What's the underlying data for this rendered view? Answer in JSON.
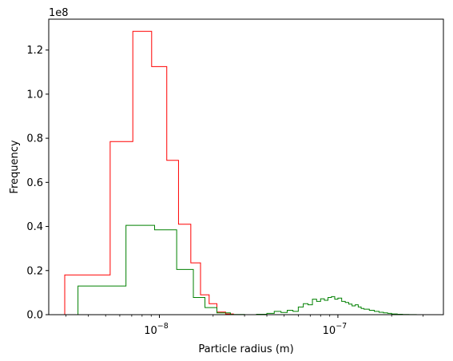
{
  "chart_data": {
    "type": "histogram-step",
    "xlabel": "Particle radius (m)",
    "ylabel": "Frequency",
    "xscale": "log",
    "xlim": [
      2.4e-09,
      3.9e-07
    ],
    "ylim": [
      0,
      134000000.0
    ],
    "y_offset_label": "1e8",
    "y_ticks": [
      0,
      20000000,
      40000000,
      60000000,
      80000000,
      100000000,
      120000000
    ],
    "y_tick_labels": [
      "0.0",
      "0.2",
      "0.4",
      "0.6",
      "0.8",
      "1.0",
      "1.2"
    ],
    "x_major_ticks": [
      1e-08,
      1e-07
    ],
    "x_major_tick_labels": [
      {
        "base": "10",
        "exp": "−8"
      },
      {
        "base": "10",
        "exp": "−7"
      }
    ],
    "x_minor_ticks": [
      3e-09,
      4e-09,
      5e-09,
      6e-09,
      7e-09,
      8e-09,
      9e-09,
      2e-08,
      3e-08,
      4e-08,
      5e-08,
      6e-08,
      7e-08,
      8e-08,
      9e-08,
      2e-07,
      3e-07
    ],
    "series": [
      {
        "color": "#ff0000",
        "edges": [
          2.95e-09,
          5.3e-09,
          7.1e-09,
          9.05e-09,
          1.1e-08,
          1.28e-08,
          1.5e-08,
          1.7e-08,
          1.9e-08,
          2.1e-08,
          2.35e-08,
          2.6e-08
        ],
        "values": [
          18000000,
          78500000,
          128500000,
          112500000,
          70000000,
          41000000,
          23500000,
          9000000,
          5000000,
          1200000,
          300000
        ]
      },
      {
        "color": "#008000",
        "edges": [
          3.5e-09,
          6.5e-09,
          9.4e-09,
          1.25e-08,
          1.55e-08,
          1.8e-08,
          2.1e-08,
          2.5e-08,
          3e-08,
          3.5e-08,
          4e-08,
          4.4e-08,
          4.8e-08,
          5.2e-08,
          5.6e-08,
          6e-08,
          6.4e-08,
          6.8e-08,
          7.2e-08,
          7.6e-08,
          8e-08,
          8.4e-08,
          8.8e-08,
          9.2e-08,
          9.6e-08,
          1e-07,
          1.05e-07,
          1.1e-07,
          1.15e-07,
          1.2e-07,
          1.25e-07,
          1.3e-07,
          1.35e-07,
          1.4e-07,
          1.5e-07,
          1.6e-07,
          1.7e-07,
          1.8e-07,
          1.9e-07,
          2e-07,
          2.15e-07,
          2.3e-07,
          2.5e-07,
          2.75e-07
        ],
        "values": [
          13000000,
          40500000,
          38500000,
          20500000,
          7800000,
          3200000,
          800000,
          100000,
          0,
          200000,
          600000,
          1500000,
          1000000,
          2000000,
          1500000,
          3500000,
          5000000,
          4500000,
          7000000,
          6000000,
          7200000,
          6500000,
          7800000,
          8200000,
          7000000,
          7500000,
          6000000,
          5500000,
          4800000,
          4000000,
          4500000,
          3500000,
          2800000,
          2500000,
          2000000,
          1500000,
          1100000,
          800000,
          600000,
          300000,
          200000,
          80000,
          30000
        ]
      }
    ]
  }
}
